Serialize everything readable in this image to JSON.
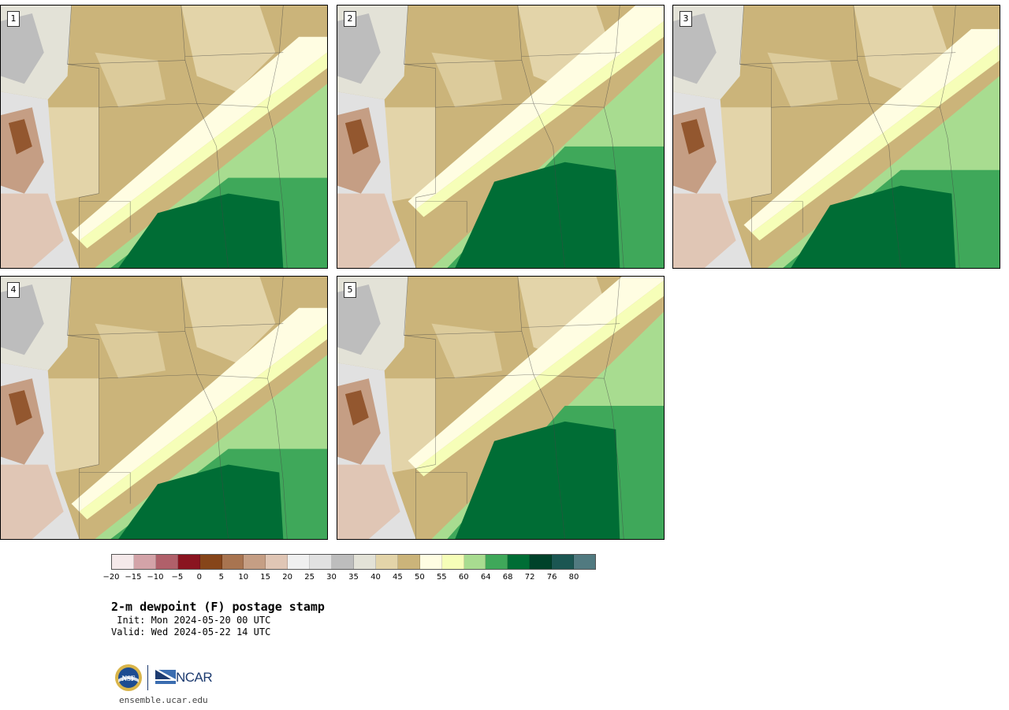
{
  "panels": [
    {
      "label": "1",
      "variant": 0
    },
    {
      "label": "2",
      "variant": 1
    },
    {
      "label": "3",
      "variant": 2
    },
    {
      "label": "4",
      "variant": 3
    },
    {
      "label": "5",
      "variant": 4
    }
  ],
  "colorbar": {
    "colors": [
      "#f5e9ea",
      "#d3a3a8",
      "#b0606a",
      "#8a1420",
      "#86451a",
      "#a87450",
      "#c59e84",
      "#e0c6b5",
      "#f0f0f0",
      "#e1e1e1",
      "#bdbdbd",
      "#e3e2d7",
      "#e3d4a9",
      "#cbb47a",
      "#fffde2",
      "#f6feb8",
      "#a8dc90",
      "#3fa85a",
      "#006d35",
      "#00422a",
      "#1b5652",
      "#517a80"
    ],
    "tick_labels": [
      "−20",
      "−15",
      "−10",
      "−5",
      "0",
      "5",
      "10",
      "15",
      "20",
      "25",
      "30",
      "35",
      "40",
      "45",
      "50",
      "55",
      "60",
      "64",
      "68",
      "72",
      "76",
      "80"
    ]
  },
  "title": "2-m dewpoint (F) postage stamp",
  "init": " Init: Mon 2024-05-20 00 UTC",
  "valid": "Valid: Wed 2024-05-22 14 UTC",
  "logos": {
    "nsf": "NSF",
    "ncar": "NCAR"
  },
  "url": "ensemble.ucar.edu"
}
